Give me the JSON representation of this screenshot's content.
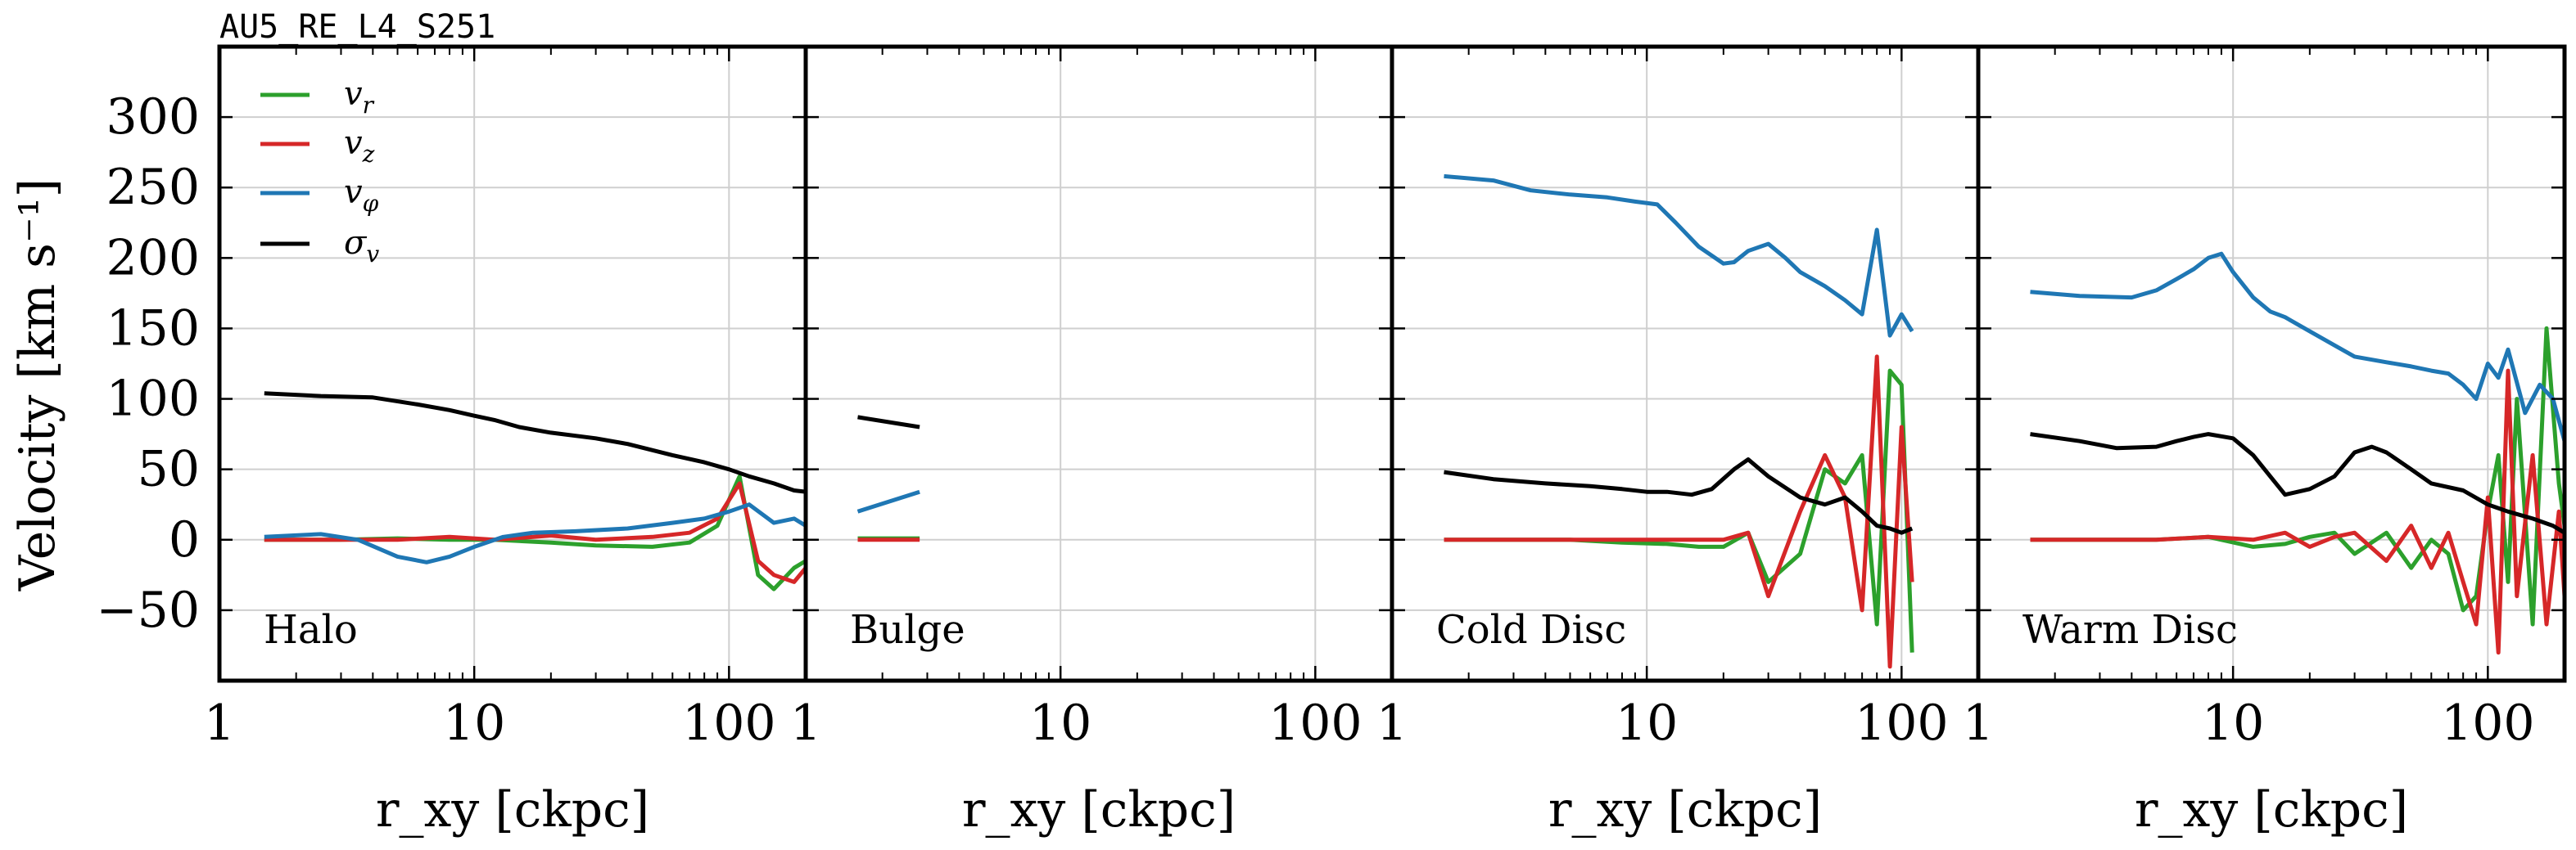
{
  "figure": {
    "run_label": "AU5_RE_L4_S251",
    "ylabel": "Velocity [km s⁻¹]",
    "xlabel": "r_xy [ckpc]",
    "ytick_labels": [
      "300",
      "250",
      "200",
      "150",
      "100",
      "50",
      "0",
      "−50"
    ],
    "xtick_labels": [
      "1",
      "10",
      "100"
    ]
  },
  "colors": {
    "v_r": "#2ca02c",
    "v_z": "#d62728",
    "v_phi": "#1f77b4",
    "sigma_v": "#000000",
    "grid": "#cfcfcf"
  },
  "legend": {
    "placement": "top-left",
    "entries": [
      {
        "key": "v_r",
        "label": "v_r"
      },
      {
        "key": "v_z",
        "label": "v_z"
      },
      {
        "key": "v_phi",
        "label": "v_φ"
      },
      {
        "key": "sigma_v",
        "label": "σ_v"
      }
    ]
  },
  "chart_data": [
    {
      "type": "line",
      "panel": "Halo",
      "x_scale": "log",
      "xlim": [
        1,
        200
      ],
      "ylim": [
        -100,
        350
      ],
      "grid": true,
      "series": [
        {
          "name": "v_r",
          "x": [
            1.5,
            3,
            5,
            8,
            12,
            20,
            30,
            50,
            70,
            90,
            110,
            130,
            150,
            180,
            200
          ],
          "y": [
            0,
            0,
            1,
            0,
            0,
            -2,
            -4,
            -5,
            -2,
            10,
            45,
            -25,
            -35,
            -20,
            -15
          ]
        },
        {
          "name": "v_z",
          "x": [
            1.5,
            3,
            5,
            8,
            12,
            20,
            30,
            50,
            70,
            90,
            110,
            130,
            150,
            180,
            200
          ],
          "y": [
            0,
            0,
            0,
            2,
            0,
            3,
            0,
            2,
            5,
            15,
            40,
            -15,
            -25,
            -30,
            -20
          ]
        },
        {
          "name": "v_phi",
          "x": [
            1.5,
            2.5,
            3.5,
            5,
            6.5,
            8,
            10,
            13,
            17,
            25,
            40,
            60,
            80,
            100,
            120,
            150,
            180,
            200
          ],
          "y": [
            2,
            4,
            0,
            -12,
            -16,
            -12,
            -5,
            2,
            5,
            6,
            8,
            12,
            15,
            20,
            25,
            12,
            15,
            10
          ]
        },
        {
          "name": "sigma_v",
          "x": [
            1.5,
            2.5,
            4,
            6,
            8,
            10,
            12,
            15,
            20,
            30,
            40,
            60,
            80,
            100,
            120,
            150,
            180,
            200
          ],
          "y": [
            104,
            102,
            101,
            96,
            92,
            88,
            85,
            80,
            76,
            72,
            68,
            60,
            55,
            50,
            45,
            40,
            35,
            34
          ]
        }
      ]
    },
    {
      "type": "line",
      "panel": "Bulge",
      "x_scale": "log",
      "xlim": [
        1,
        200
      ],
      "ylim": [
        -100,
        350
      ],
      "grid": true,
      "series": [
        {
          "name": "v_r",
          "x": [
            1.6,
            2.8
          ],
          "y": [
            1,
            1
          ]
        },
        {
          "name": "v_z",
          "x": [
            1.6,
            2.8
          ],
          "y": [
            0,
            0
          ]
        },
        {
          "name": "v_phi",
          "x": [
            1.6,
            2.8
          ],
          "y": [
            20,
            34
          ]
        },
        {
          "name": "sigma_v",
          "x": [
            1.6,
            2.8
          ],
          "y": [
            87,
            80
          ]
        }
      ]
    },
    {
      "type": "line",
      "panel": "Cold Disc",
      "x_scale": "log",
      "xlim": [
        1,
        200
      ],
      "ylim": [
        -100,
        350
      ],
      "grid": true,
      "series": [
        {
          "name": "v_r",
          "x": [
            1.6,
            3,
            5,
            8,
            12,
            16,
            20,
            25,
            30,
            40,
            50,
            60,
            70,
            80,
            90,
            100,
            110
          ],
          "y": [
            0,
            0,
            0,
            -2,
            -3,
            -5,
            -5,
            5,
            -30,
            -10,
            50,
            40,
            60,
            -60,
            120,
            110,
            -80
          ]
        },
        {
          "name": "v_z",
          "x": [
            1.6,
            3,
            5,
            8,
            12,
            16,
            20,
            25,
            30,
            40,
            50,
            60,
            70,
            80,
            90,
            100,
            110
          ],
          "y": [
            0,
            0,
            0,
            0,
            0,
            0,
            0,
            5,
            -40,
            20,
            60,
            30,
            -50,
            130,
            -90,
            80,
            -30
          ]
        },
        {
          "name": "v_phi",
          "x": [
            1.6,
            2.5,
            3.5,
            5,
            7,
            9,
            11,
            13,
            16,
            20,
            22,
            25,
            30,
            35,
            40,
            50,
            60,
            70,
            80,
            90,
            100,
            110
          ],
          "y": [
            258,
            255,
            248,
            245,
            243,
            240,
            238,
            225,
            208,
            196,
            197,
            205,
            210,
            200,
            190,
            180,
            170,
            160,
            220,
            145,
            160,
            148
          ]
        },
        {
          "name": "sigma_v",
          "x": [
            1.6,
            2.5,
            4,
            6,
            8,
            10,
            12,
            15,
            18,
            22,
            25,
            30,
            40,
            50,
            60,
            70,
            80,
            90,
            100,
            110
          ],
          "y": [
            48,
            43,
            40,
            38,
            36,
            34,
            34,
            32,
            36,
            50,
            57,
            45,
            30,
            25,
            30,
            20,
            10,
            8,
            5,
            8
          ]
        }
      ]
    },
    {
      "type": "line",
      "panel": "Warm Disc",
      "x_scale": "log",
      "xlim": [
        1,
        200
      ],
      "ylim": [
        -100,
        350
      ],
      "grid": true,
      "series": [
        {
          "name": "v_r",
          "x": [
            1.6,
            3,
            5,
            8,
            12,
            16,
            20,
            25,
            30,
            40,
            50,
            60,
            70,
            80,
            90,
            100,
            110,
            120,
            130,
            150,
            170,
            190,
            200
          ],
          "y": [
            0,
            0,
            0,
            2,
            -5,
            -3,
            2,
            5,
            -10,
            5,
            -20,
            0,
            -10,
            -50,
            -40,
            20,
            60,
            -30,
            100,
            -60,
            150,
            40,
            10
          ]
        },
        {
          "name": "v_z",
          "x": [
            1.6,
            3,
            5,
            8,
            12,
            16,
            20,
            25,
            30,
            40,
            50,
            60,
            70,
            80,
            90,
            100,
            110,
            120,
            130,
            150,
            170,
            190,
            200
          ],
          "y": [
            0,
            0,
            0,
            2,
            0,
            5,
            -5,
            2,
            5,
            -15,
            10,
            -20,
            5,
            -30,
            -60,
            30,
            -80,
            120,
            -40,
            60,
            -60,
            20,
            -40
          ]
        },
        {
          "name": "v_phi",
          "x": [
            1.6,
            2.5,
            4,
            5,
            6,
            7,
            8,
            9,
            10,
            12,
            14,
            16,
            20,
            25,
            30,
            40,
            50,
            60,
            70,
            80,
            90,
            100,
            110,
            120,
            140,
            160,
            180,
            200
          ],
          "y": [
            176,
            173,
            172,
            177,
            185,
            192,
            200,
            203,
            190,
            172,
            162,
            158,
            148,
            138,
            130,
            126,
            123,
            120,
            118,
            110,
            100,
            125,
            115,
            135,
            90,
            110,
            100,
            70
          ]
        },
        {
          "name": "sigma_v",
          "x": [
            1.6,
            2.5,
            3.5,
            5,
            6,
            7,
            8,
            10,
            12,
            14,
            16,
            20,
            25,
            30,
            35,
            40,
            50,
            60,
            80,
            100,
            120,
            150,
            180,
            200
          ],
          "y": [
            75,
            70,
            65,
            66,
            70,
            73,
            75,
            72,
            60,
            45,
            32,
            36,
            45,
            62,
            66,
            62,
            50,
            40,
            35,
            25,
            20,
            15,
            10,
            5
          ]
        }
      ]
    }
  ]
}
